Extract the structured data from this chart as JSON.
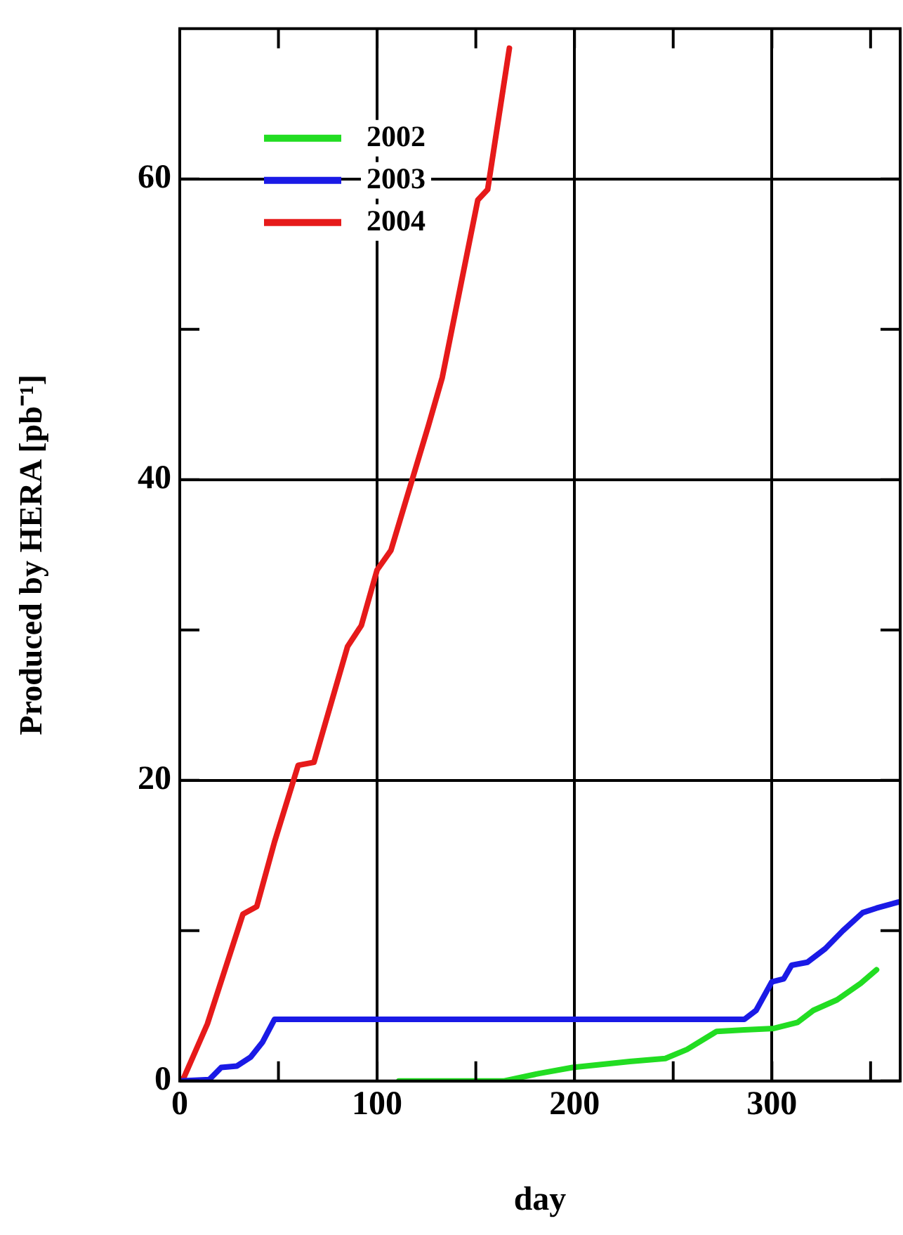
{
  "chart_data": {
    "type": "line",
    "xlabel": "day",
    "ylabel": "Produced by HERA [pb⁻¹]",
    "xlim": [
      0,
      365
    ],
    "ylim": [
      0,
      70
    ],
    "xticks": [
      0,
      {
        "value": 50,
        "label": null
      },
      100,
      {
        "value": 150,
        "label": null
      },
      200,
      {
        "value": 250,
        "label": null
      },
      300,
      {
        "value": 350,
        "label": null
      }
    ],
    "yticks": [
      0,
      {
        "value": 10,
        "label": null
      },
      20,
      {
        "value": 30,
        "label": null
      },
      40,
      {
        "value": 50,
        "label": null
      },
      60
    ],
    "grid": true,
    "legend": "top left",
    "marker": "none",
    "line_style": "solid",
    "series": [
      {
        "name": "2002",
        "color": "#22dd22",
        "x": [
          111,
          164,
          182,
          199,
          228,
          246,
          257,
          272,
          286,
          301,
          313,
          321,
          333,
          345,
          353
        ],
        "values": [
          0,
          0,
          0.5,
          0.9,
          1.3,
          1.5,
          2.1,
          3.3,
          3.4,
          3.5,
          3.9,
          4.7,
          5.4,
          6.5,
          7.4
        ]
      },
      {
        "name": "2003",
        "color": "#1a1ae6",
        "x": [
          0,
          15,
          21,
          29,
          36,
          42,
          48,
          286,
          292,
          300,
          306,
          310,
          318,
          327,
          336,
          346,
          353,
          364
        ],
        "values": [
          0,
          0.1,
          0.9,
          1.0,
          1.6,
          2.6,
          4.1,
          4.1,
          4.7,
          6.6,
          6.8,
          7.7,
          7.9,
          8.8,
          10.0,
          11.2,
          11.5,
          11.9
        ]
      },
      {
        "name": "2004",
        "color": "#e61a1a",
        "x": [
          0,
          2,
          14,
          32,
          39,
          48,
          60,
          68,
          85,
          92,
          100,
          107,
          126,
          133,
          151,
          156,
          167
        ],
        "values": [
          0,
          0.2,
          3.8,
          11.1,
          11.6,
          15.9,
          21.0,
          21.2,
          28.9,
          30.3,
          34,
          35.3,
          43.6,
          46.8,
          58.6,
          59.3,
          68.7
        ]
      }
    ]
  }
}
